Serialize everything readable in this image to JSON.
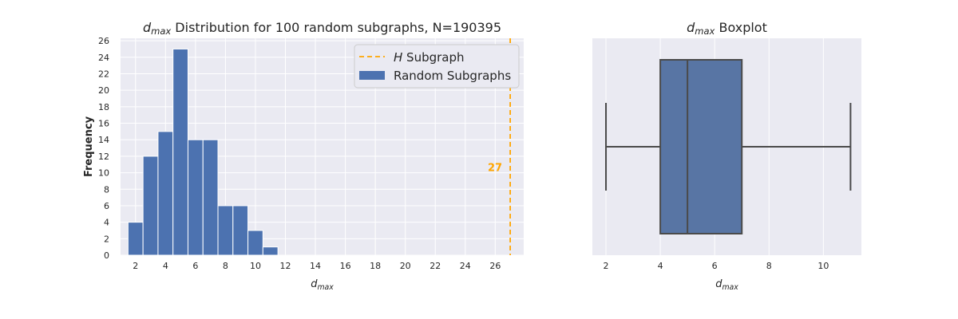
{
  "chart_data": [
    {
      "type": "bar",
      "title": {
        "subscript_base": "d",
        "subscript": "max",
        "text": " Distribution for 100 random subgraphs, N=190395"
      },
      "xlabel": {
        "base": "d",
        "sub": "max"
      },
      "ylabel": "Frequency",
      "x_ticks": [
        2,
        4,
        6,
        8,
        10,
        12,
        14,
        16,
        18,
        20,
        22,
        24,
        26
      ],
      "y_ticks": [
        0,
        2,
        4,
        6,
        8,
        10,
        12,
        14,
        16,
        18,
        20,
        22,
        24,
        26
      ],
      "xlim": [
        1,
        27.9
      ],
      "ylim": [
        0,
        26.3
      ],
      "bins": [
        {
          "x": 2,
          "count": 4
        },
        {
          "x": 3,
          "count": 12
        },
        {
          "x": 4,
          "count": 15
        },
        {
          "x": 5,
          "count": 25
        },
        {
          "x": 6,
          "count": 14
        },
        {
          "x": 7,
          "count": 14
        },
        {
          "x": 8,
          "count": 6
        },
        {
          "x": 9,
          "count": 6
        },
        {
          "x": 10,
          "count": 3
        },
        {
          "x": 11,
          "count": 1
        }
      ],
      "bin_width": 1,
      "reference_line": {
        "x": 27,
        "label": "27",
        "color": "#FFA500",
        "style": "dashed"
      },
      "legend": {
        "placement": "top-right",
        "entries": [
          {
            "label_italic": "H",
            "label": " Subgraph",
            "kind": "dashed-line",
            "color": "#FFA500"
          },
          {
            "label": "Random Subgraphs",
            "kind": "patch",
            "color": "#4C72B0"
          }
        ]
      },
      "bar_color": "#4C72B0",
      "background": "#EAEAF2",
      "grid": true
    },
    {
      "type": "boxplot",
      "title": {
        "subscript_base": "d",
        "subscript": "max",
        "text": " Boxplot"
      },
      "xlabel": {
        "base": "d",
        "sub": "max"
      },
      "x_ticks": [
        2,
        4,
        6,
        8,
        10
      ],
      "xlim": [
        1.5,
        11.4
      ],
      "stats": {
        "whisker_low": 2,
        "q1": 4,
        "median": 5,
        "q3": 7,
        "whisker_high": 11
      },
      "box_color": "#5875A4",
      "line_color": "#4A4A4A",
      "background": "#EAEAF2",
      "grid": true
    }
  ]
}
